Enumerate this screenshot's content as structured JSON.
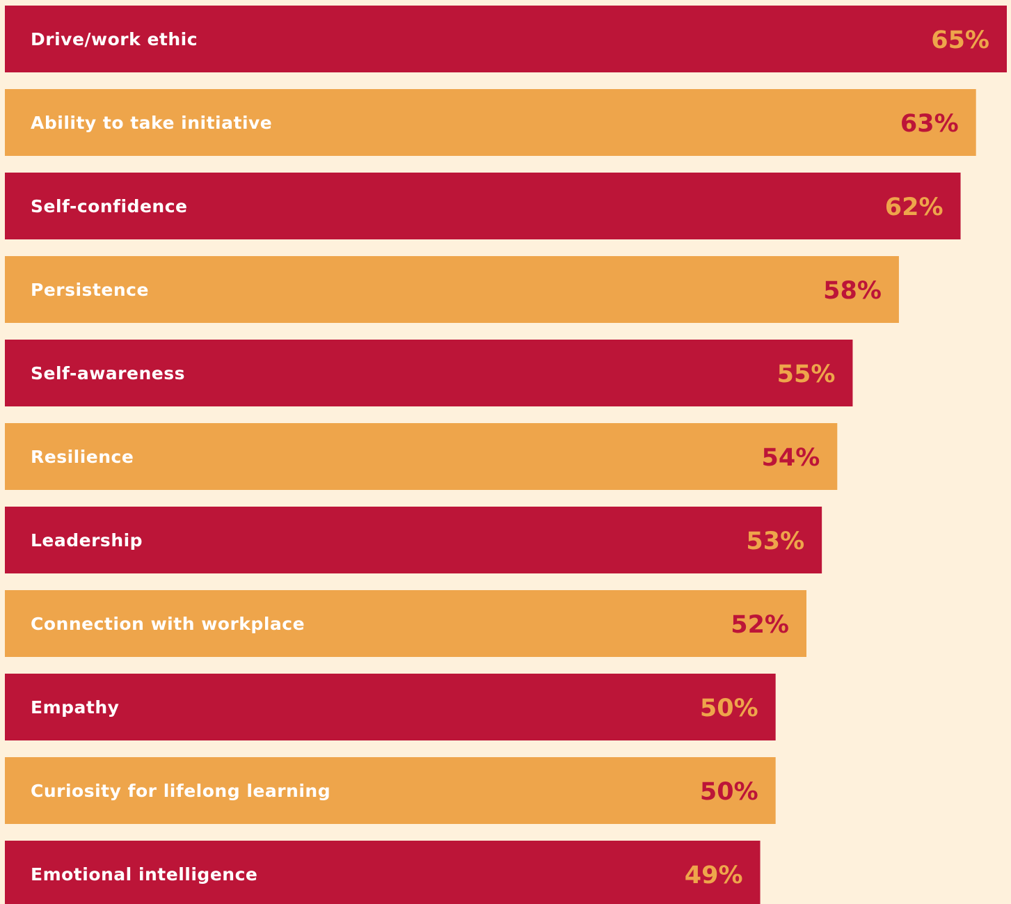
{
  "chart_data": {
    "type": "bar",
    "orientation": "horizontal",
    "categories": [
      "Drive/work ethic",
      "Ability to take initiative",
      "Self-confidence",
      "Persistence",
      "Self-awareness",
      "Resilience",
      "Leadership",
      "Connection with workplace",
      "Empathy",
      "Curiosity for lifelong learning",
      "Emotional intelligence"
    ],
    "values": [
      65,
      63,
      62,
      58,
      55,
      54,
      53,
      52,
      50,
      50,
      49
    ],
    "value_labels": [
      "65%",
      "63%",
      "62%",
      "58%",
      "55%",
      "54%",
      "53%",
      "52%",
      "50%",
      "50%",
      "49%"
    ],
    "colors": [
      "#bc1538",
      "#eea54b",
      "#bc1538",
      "#eea54b",
      "#bc1538",
      "#eea54b",
      "#bc1538",
      "#eea54b",
      "#bc1538",
      "#eea54b",
      "#bc1538"
    ],
    "value_label_colors": [
      "#eea54b",
      "#bc1538",
      "#eea54b",
      "#bc1538",
      "#eea54b",
      "#bc1538",
      "#eea54b",
      "#bc1538",
      "#eea54b",
      "#bc1538",
      "#eea54b"
    ],
    "xlim": [
      0,
      65
    ]
  }
}
